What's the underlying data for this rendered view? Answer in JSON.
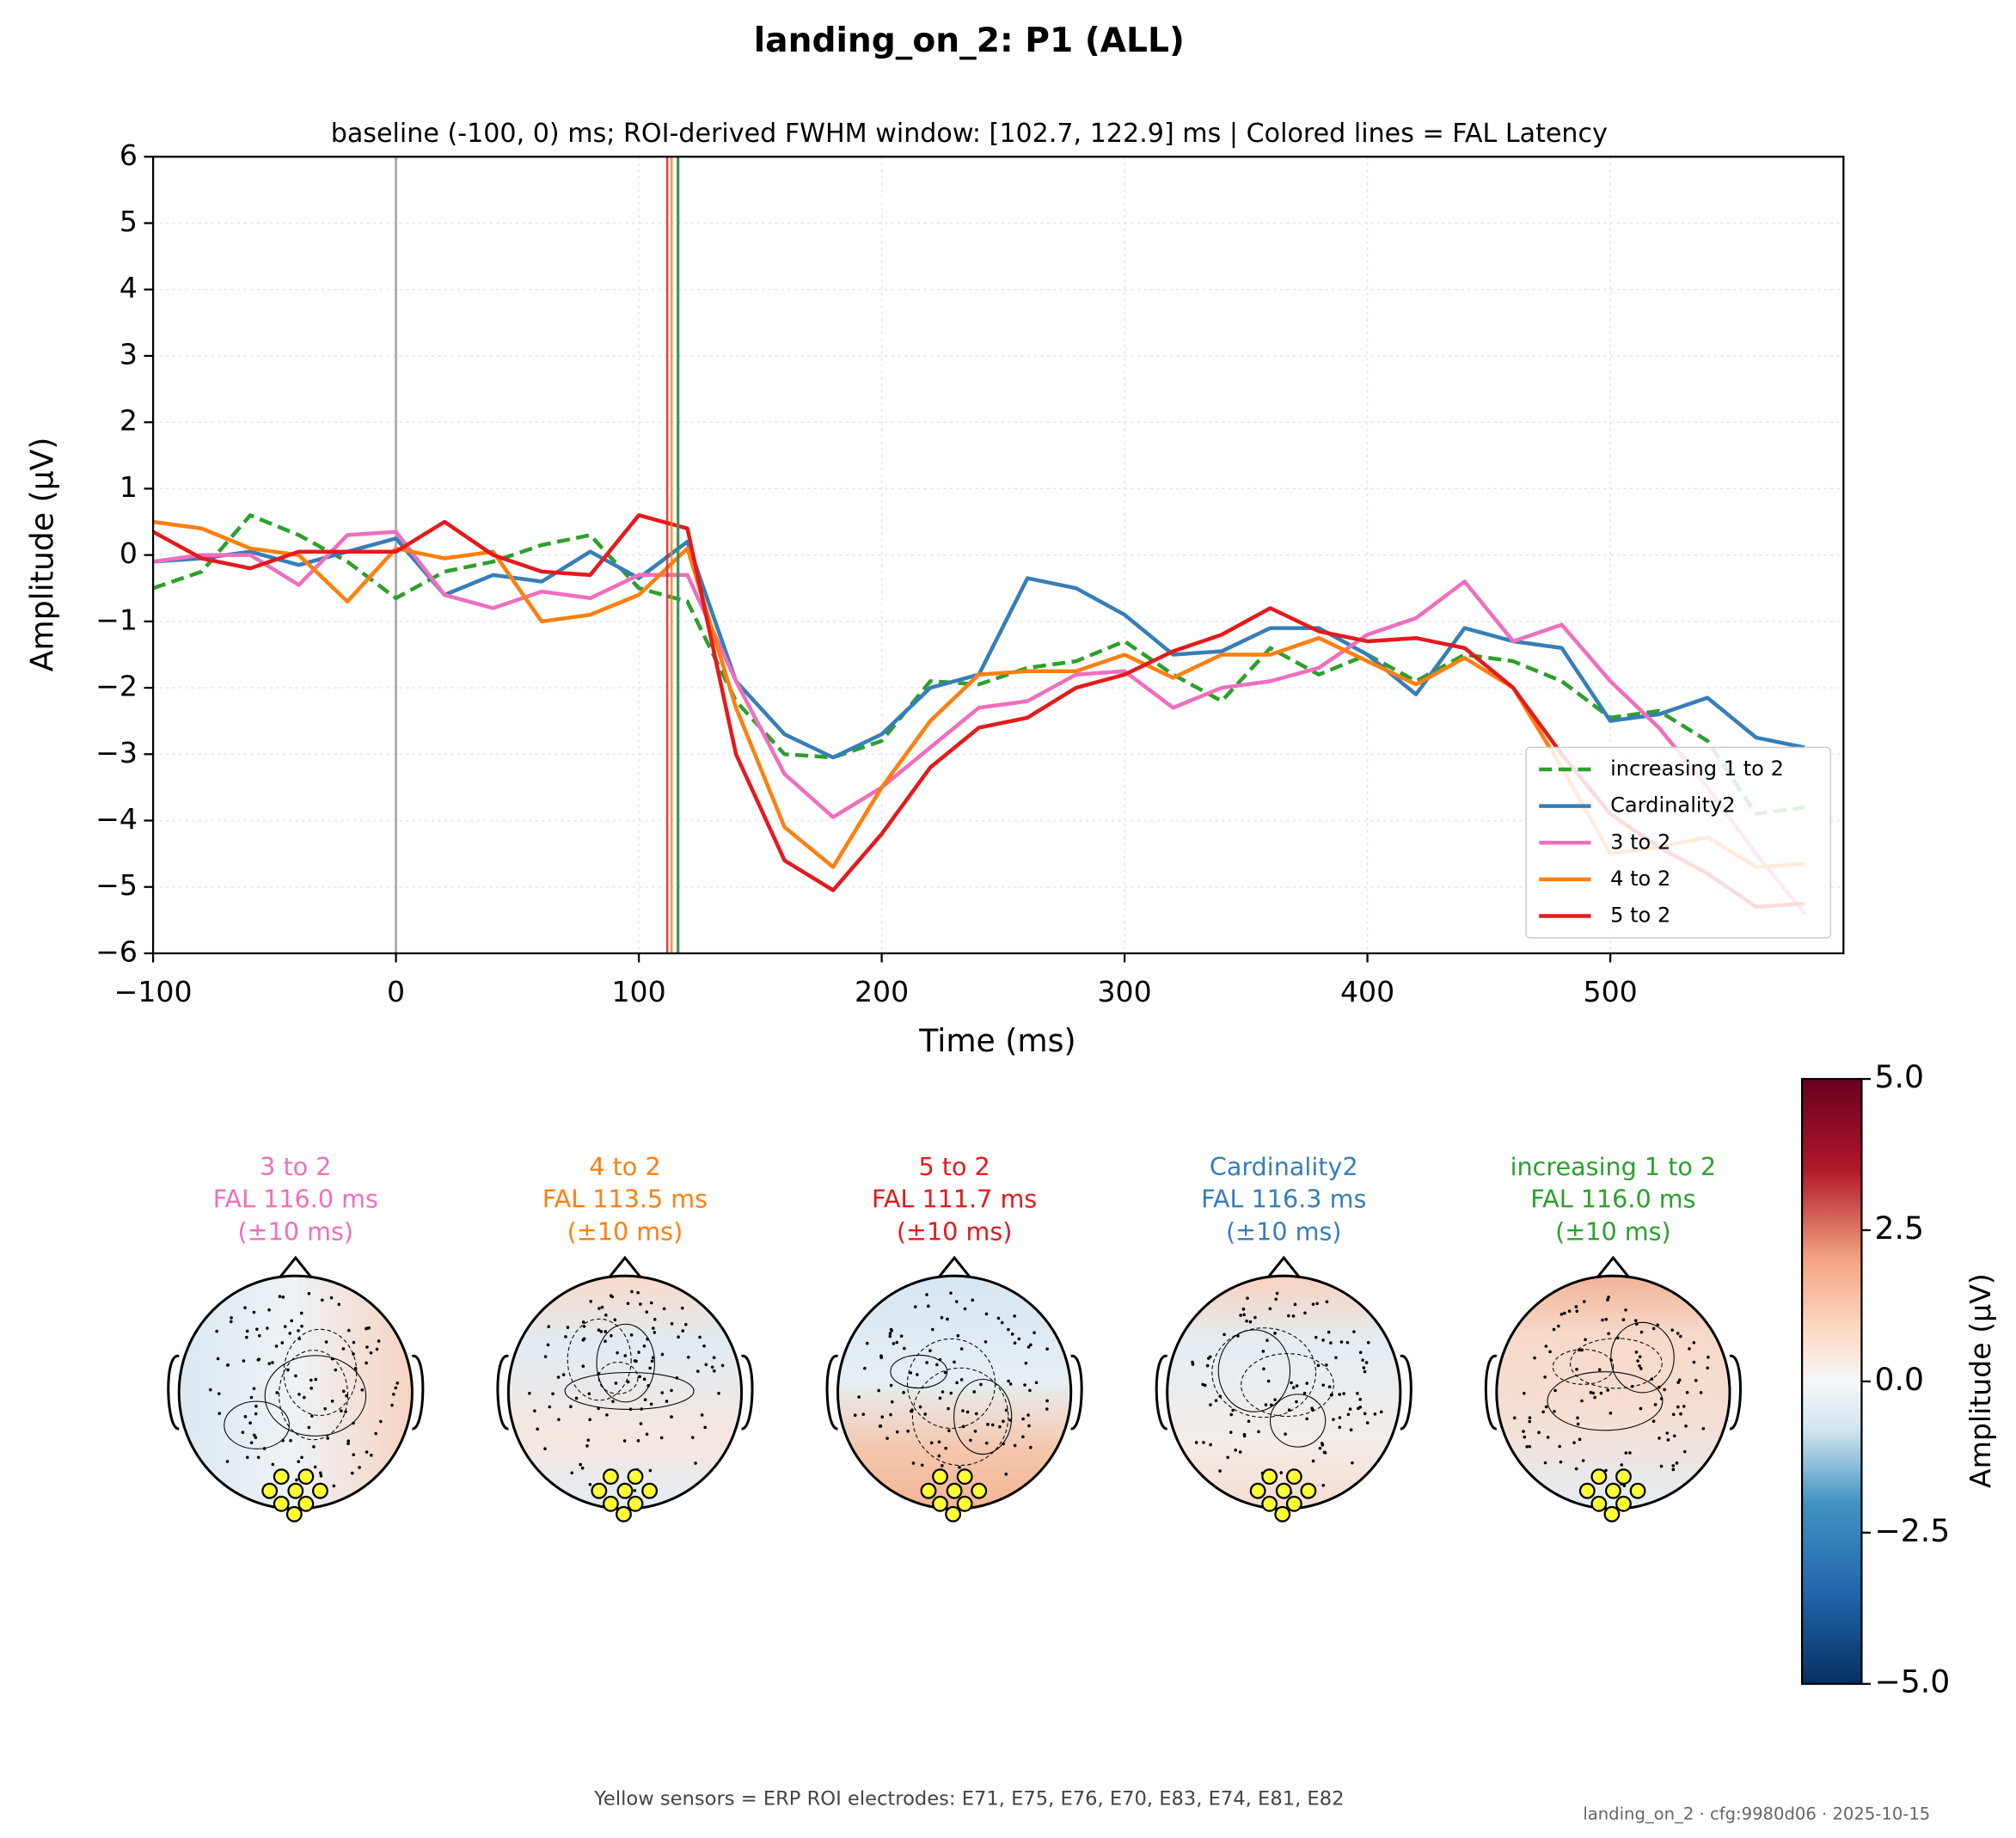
{
  "chart_data": {
    "type": "line",
    "title": "landing_on_2: P1 (ALL)",
    "subtitle": "baseline (-100, 0) ms; ROI-derived FWHM window: [102.7, 122.9] ms | Colored lines = FAL Latency",
    "xlabel": "Time (ms)",
    "ylabel": "Amplitude (µV)",
    "xlim": [
      -100,
      596
    ],
    "ylim": [
      -6,
      6
    ],
    "xticks": [
      {
        "value": -100,
        "label": "−100"
      },
      0,
      100,
      200,
      300,
      400,
      500
    ],
    "yticks": [
      {
        "value": -6,
        "label": "−6"
      },
      {
        "value": -5,
        "label": "−5"
      },
      {
        "value": -4,
        "label": "−4"
      },
      {
        "value": -3,
        "label": "−3"
      },
      {
        "value": -2,
        "label": "−2"
      },
      {
        "value": -1,
        "label": "−1"
      },
      0,
      1,
      2,
      3,
      4,
      5,
      6
    ],
    "grid": true,
    "legend": "lower right",
    "reference_line": 0,
    "x": [
      -100,
      -80,
      -60,
      -40,
      -20,
      0,
      20,
      40,
      60,
      80,
      100,
      120,
      140,
      160,
      180,
      200,
      220,
      240,
      260,
      280,
      300,
      320,
      340,
      360,
      380,
      400,
      420,
      440,
      460,
      480,
      500,
      520,
      540,
      560,
      580
    ],
    "series": [
      {
        "name": "increasing 1 to 2",
        "color": "#2ca02c",
        "linestyle": "dashed",
        "values": [
          -0.5,
          -0.25,
          0.6,
          0.3,
          -0.1,
          -0.65,
          -0.25,
          -0.1,
          0.15,
          0.3,
          -0.5,
          -0.7,
          -2.2,
          -3.0,
          -3.05,
          -2.8,
          -1.9,
          -1.95,
          -1.7,
          -1.6,
          -1.3,
          -1.8,
          -2.2,
          -1.4,
          -1.8,
          -1.5,
          -1.9,
          -1.5,
          -1.6,
          -1.9,
          -2.45,
          -2.35,
          -2.8,
          -3.9,
          -3.8
        ]
      },
      {
        "name": "Cardinality2",
        "color": "#377eb8",
        "linestyle": "solid",
        "values": [
          -0.1,
          -0.05,
          0.05,
          -0.15,
          0.05,
          0.25,
          -0.6,
          -0.3,
          -0.4,
          0.05,
          -0.35,
          0.2,
          -1.9,
          -2.7,
          -3.05,
          -2.7,
          -2.0,
          -1.8,
          -0.35,
          -0.5,
          -0.9,
          -1.5,
          -1.45,
          -1.1,
          -1.1,
          -1.5,
          -2.1,
          -1.1,
          -1.3,
          -1.4,
          -2.5,
          -2.4,
          -2.15,
          -2.75,
          -2.9
        ]
      },
      {
        "name": "3 to 2",
        "color": "#f06ebc",
        "linestyle": "solid",
        "values": [
          -0.1,
          0.0,
          0.0,
          -0.45,
          0.3,
          0.35,
          -0.6,
          -0.8,
          -0.55,
          -0.65,
          -0.3,
          -0.3,
          -1.9,
          -3.3,
          -3.95,
          -3.5,
          -2.9,
          -2.3,
          -2.2,
          -1.8,
          -1.75,
          -2.3,
          -2.0,
          -1.9,
          -1.7,
          -1.2,
          -0.95,
          -0.4,
          -1.3,
          -1.05,
          -1.9,
          -2.6,
          -3.5,
          -4.5,
          -5.4
        ]
      },
      {
        "name": "4 to 2",
        "color": "#ff7f0e",
        "linestyle": "solid",
        "values": [
          0.5,
          0.4,
          0.1,
          0.0,
          -0.7,
          0.1,
          -0.05,
          0.05,
          -1.0,
          -0.9,
          -0.6,
          0.1,
          -2.3,
          -4.1,
          -4.7,
          -3.5,
          -2.5,
          -1.8,
          -1.75,
          -1.75,
          -1.5,
          -1.85,
          -1.5,
          -1.5,
          -1.25,
          -1.6,
          -1.95,
          -1.55,
          -2.0,
          -3.2,
          -4.5,
          -4.4,
          -4.25,
          -4.7,
          -4.65
        ]
      },
      {
        "name": "5 to 2",
        "color": "#e41a1c",
        "linestyle": "solid",
        "values": [
          0.35,
          -0.05,
          -0.2,
          0.05,
          0.05,
          0.05,
          0.5,
          0.0,
          -0.25,
          -0.3,
          0.6,
          0.4,
          -3.0,
          -4.6,
          -5.05,
          -4.2,
          -3.2,
          -2.6,
          -2.45,
          -2.0,
          -1.8,
          -1.45,
          -1.2,
          -0.8,
          -1.15,
          -1.3,
          -1.25,
          -1.4,
          -2.0,
          -3.0,
          -3.9,
          -4.4,
          -4.8,
          -5.3,
          -5.25
        ]
      }
    ],
    "topomaps": [
      {
        "name": "3 to 2",
        "color": "#f06ebc",
        "latency": 116.0,
        "latency_label": "FAL 116.0 ms",
        "window_label": "(±10 ms)"
      },
      {
        "name": "4 to 2",
        "color": "#ff7f0e",
        "latency": 113.5,
        "latency_label": "FAL 113.5 ms",
        "window_label": "(±10 ms)"
      },
      {
        "name": "5 to 2",
        "color": "#e41a1c",
        "latency": 111.7,
        "latency_label": "FAL 111.7 ms",
        "window_label": "(±10 ms)"
      },
      {
        "name": "Cardinality2",
        "color": "#377eb8",
        "latency": 116.3,
        "latency_label": "FAL 116.3 ms",
        "window_label": "(±10 ms)"
      },
      {
        "name": "increasing 1 to 2",
        "color": "#2ca02c",
        "latency": 116.0,
        "latency_label": "FAL 116.0 ms",
        "window_label": "(±10 ms)"
      }
    ],
    "colorbar": {
      "label": "Amplitude (µV)",
      "ylim": [
        -5,
        5
      ],
      "yticks": [
        {
          "value": -5,
          "label": "−5.0"
        },
        {
          "value": -2.5,
          "label": "−2.5"
        },
        {
          "value": 0,
          "label": "0.0"
        },
        {
          "value": 2.5,
          "label": "2.5"
        },
        {
          "value": 5,
          "label": "5.0"
        }
      ]
    },
    "footnote": "Yellow sensors = ERP ROI electrodes: E71, E75, E76, E70, E83, E74, E81, E82",
    "stamp": "landing_on_2 · cfg:9980d06 · 2025-10-15"
  }
}
